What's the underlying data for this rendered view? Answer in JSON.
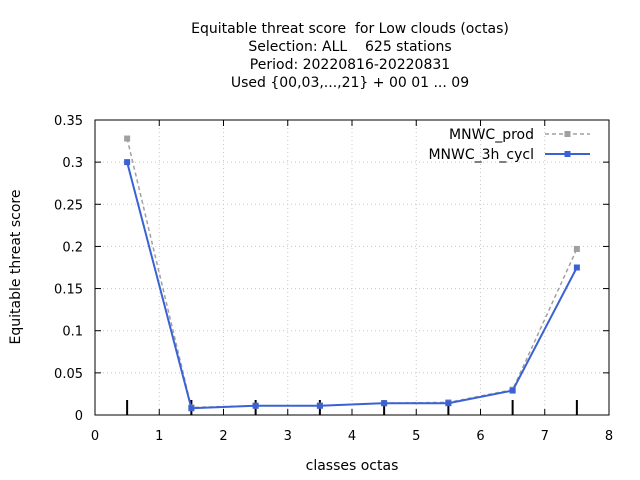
{
  "chart_data": {
    "type": "line",
    "title_lines": [
      "Equitable threat score  for Low clouds (octas)",
      "Selection: ALL    625 stations",
      "Period: 20220816-20220831",
      "Used {00,03,...,21} + 00 01 ... 09"
    ],
    "xlabel": "classes octas",
    "ylabel": "Equitable threat score",
    "xlim": [
      0,
      8
    ],
    "ylim": [
      0,
      0.35
    ],
    "x_ticks": [
      "0",
      "1",
      "2",
      "3",
      "4",
      "5",
      "6",
      "7",
      "8"
    ],
    "y_ticks": [
      "0",
      "0.05",
      "0.1",
      "0.15",
      "0.2",
      "0.25",
      "0.3",
      "0.35"
    ],
    "grid": true,
    "legend_position": "top-right",
    "series": [
      {
        "name": "MNWC_prod",
        "color": "#a0a0a0",
        "style": "dashed",
        "x": [
          0.5,
          1.5,
          2.5,
          3.5,
          4.5,
          5.5,
          6.5,
          7.5
        ],
        "y": [
          0.328,
          0.009,
          0.011,
          0.011,
          0.014,
          0.015,
          0.03,
          0.197
        ]
      },
      {
        "name": "MNWC_3h_cycl",
        "color": "#3b62d4",
        "style": "solid",
        "x": [
          0.5,
          1.5,
          2.5,
          3.5,
          4.5,
          5.5,
          6.5,
          7.5
        ],
        "y": [
          0.3,
          0.008,
          0.011,
          0.011,
          0.014,
          0.014,
          0.029,
          0.175
        ]
      }
    ]
  }
}
